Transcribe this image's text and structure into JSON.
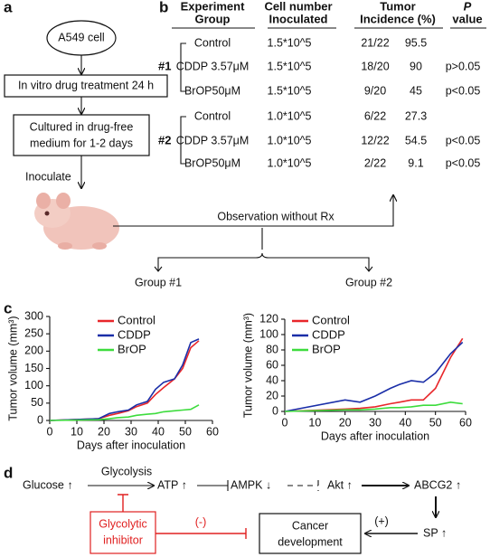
{
  "panel_a": {
    "label": "a",
    "start": "A549 cell",
    "step1": "In vitro drug treatment 24 h",
    "step2": [
      "Cultured in drug-free",
      "medium for 1-2 days"
    ],
    "inoculate": "Inoculate",
    "observation": "Observation without Rx",
    "groups": [
      "Group #1",
      "Group #2"
    ]
  },
  "panel_b": {
    "label": "b",
    "headers": [
      [
        "Experiment",
        "Group"
      ],
      [
        "Cell number",
        "Inoculated"
      ],
      [
        "Tumor",
        "Incidence (%)"
      ],
      [
        "P",
        "value"
      ]
    ],
    "groups": [
      {
        "name": "#1",
        "rows": [
          {
            "treatment": "Control",
            "cells": "1.5*10^5",
            "incidence": "21/22",
            "percent": "95.5"
          },
          {
            "treatment": "CDDP 3.57μM",
            "cells": "1.5*10^5",
            "incidence": "18/20",
            "percent": "90",
            "p": "p>0.05"
          },
          {
            "treatment": "BrOP50μM",
            "cells": "1.5*10^5",
            "incidence": "9/20",
            "percent": "45",
            "p": "p<0.05"
          }
        ]
      },
      {
        "name": "#2",
        "rows": [
          {
            "treatment": "Control",
            "cells": "1.0*10^5",
            "incidence": "6/22",
            "percent": "27.3"
          },
          {
            "treatment": "CDDP 3.57μM",
            "cells": "1.0*10^5",
            "incidence": "12/22",
            "percent": "54.5",
            "p": "p<0.05"
          },
          {
            "treatment": "BrOP50μM",
            "cells": "1.0*10^5",
            "incidence": "2/22",
            "percent": "9.1",
            "p": "p<0.05"
          }
        ]
      }
    ]
  },
  "panel_c": {
    "label": "c"
  },
  "chart_data": [
    {
      "type": "line",
      "y_label": "Tumor volume (mm³)",
      "x_label": "Days after inoculation",
      "x": [
        0,
        18,
        22,
        25,
        29,
        32,
        36,
        39,
        42,
        46,
        49,
        52,
        55
      ],
      "series": [
        {
          "name": "Control",
          "color": "#e8262a",
          "values": [
            0,
            5,
            15,
            20,
            28,
            40,
            50,
            75,
            95,
            120,
            150,
            210,
            230
          ]
        },
        {
          "name": "CDDP",
          "color": "#1a2ea8",
          "values": [
            0,
            5,
            20,
            25,
            30,
            45,
            55,
            90,
            110,
            120,
            160,
            225,
            235
          ]
        },
        {
          "name": "BrOP",
          "color": "#3ddc3d",
          "values": [
            0,
            2,
            5,
            8,
            10,
            15,
            18,
            20,
            25,
            28,
            30,
            32,
            45
          ]
        }
      ],
      "xlim": [
        0,
        60
      ],
      "xticks": [
        0,
        10,
        20,
        30,
        40,
        50,
        60
      ],
      "ylim": [
        0,
        300
      ],
      "yticks": [
        0,
        50,
        100,
        150,
        200,
        250,
        300
      ]
    },
    {
      "type": "line",
      "y_label": "Tumor volume (mm³)",
      "x_label": "Days after inoculation",
      "x": [
        0,
        20,
        25,
        30,
        35,
        38,
        42,
        46,
        50,
        55,
        59
      ],
      "series": [
        {
          "name": "Control",
          "color": "#e8262a",
          "values": [
            0,
            3,
            4,
            6,
            10,
            12,
            15,
            15,
            30,
            70,
            95
          ]
        },
        {
          "name": "CDDP",
          "color": "#1a2ea8",
          "values": [
            0,
            15,
            12,
            20,
            30,
            35,
            40,
            38,
            50,
            75,
            90
          ]
        },
        {
          "name": "BrOP",
          "color": "#3ddc3d",
          "values": [
            0,
            2,
            2,
            3,
            5,
            5,
            6,
            8,
            8,
            12,
            10
          ]
        }
      ],
      "xlim": [
        0,
        60
      ],
      "xticks": [
        0,
        10,
        20,
        30,
        40,
        50,
        60
      ],
      "ylim": [
        0,
        120
      ],
      "yticks": [
        0,
        20,
        40,
        60,
        80,
        100,
        120
      ]
    }
  ],
  "panel_d": {
    "label": "d",
    "glucose": "Glucose ↑",
    "glycolysis": "Glycolysis",
    "atp": "ATP ↑",
    "ampk": "AMPK ↓",
    "akt": "Akt ↑",
    "abcg2": "ABCG2 ↑",
    "sp": "SP ↑",
    "plus": "(+)",
    "minus": "(-)",
    "outcome": [
      "Cancer",
      "development"
    ],
    "inhibitor": [
      "Glycolytic",
      "inhibitor"
    ]
  }
}
